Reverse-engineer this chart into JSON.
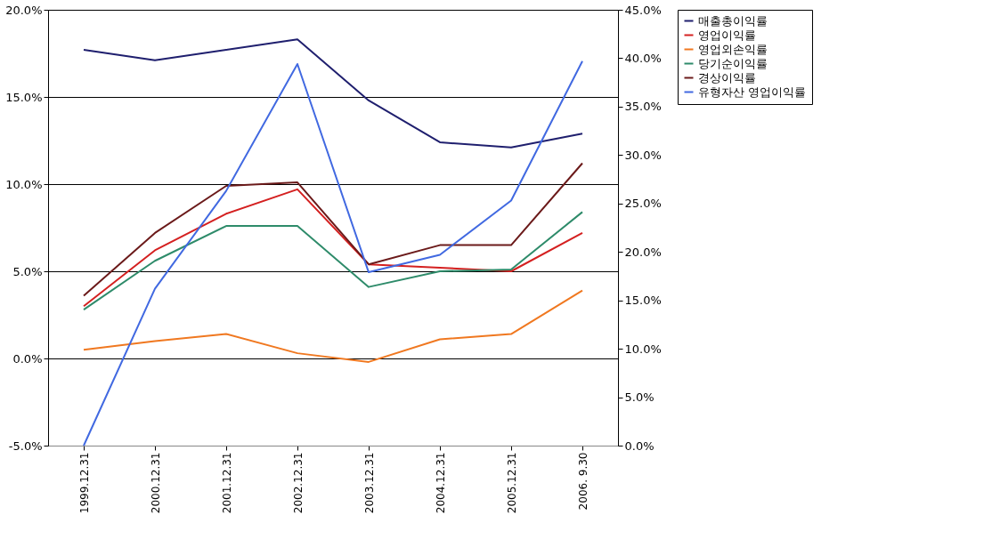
{
  "chart_data": {
    "type": "line",
    "categories": [
      "1999.12.31",
      "2000.12.31",
      "2001.12.31",
      "2002.12.31",
      "2003.12.31",
      "2004.12.31",
      "2005.12.31",
      "2006. 9.30"
    ],
    "series": [
      {
        "name": "매출총이익률",
        "color": "#1f1f6e",
        "values": [
          17.7,
          17.1,
          17.7,
          18.3,
          14.8,
          12.4,
          12.1,
          12.9
        ]
      },
      {
        "name": "영업이익률",
        "color": "#d42020",
        "values": [
          3.0,
          6.2,
          8.3,
          9.7,
          5.4,
          5.2,
          5.0,
          7.2
        ]
      },
      {
        "name": "영업외손익률",
        "color": "#f07820",
        "values": [
          0.5,
          1.0,
          1.4,
          0.3,
          -0.2,
          1.1,
          1.4,
          3.9
        ]
      },
      {
        "name": "당기순이익률",
        "color": "#2e8b6a",
        "values": [
          2.8,
          5.6,
          7.6,
          7.6,
          4.1,
          5.0,
          5.1,
          8.4
        ]
      },
      {
        "name": "경상이익률",
        "color": "#6b1a1a",
        "values": [
          3.6,
          7.2,
          9.9,
          10.1,
          5.4,
          6.5,
          6.5,
          11.2
        ]
      },
      {
        "name": "유형자산 영업이익률",
        "color": "#4169e1",
        "axis": "y2",
        "values": [
          0.0,
          16.2,
          26.3,
          39.4,
          17.9,
          19.7,
          25.3,
          39.7
        ]
      }
    ],
    "ylim": [
      -5,
      20
    ],
    "yticks": [
      {
        "value": -5,
        "label": "-5.0%"
      },
      {
        "value": 0,
        "label": "0.0%"
      },
      {
        "value": 5,
        "label": "5.0%"
      },
      {
        "value": 10,
        "label": "10.0%"
      },
      {
        "value": 15,
        "label": "15.0%"
      },
      {
        "value": 20,
        "label": "20.0%"
      }
    ],
    "y2lim": [
      0,
      45
    ],
    "y2ticks": [
      {
        "value": 0,
        "label": "0.0%"
      },
      {
        "value": 5,
        "label": "5.0%"
      },
      {
        "value": 10,
        "label": "10.0%"
      },
      {
        "value": 15,
        "label": "15.0%"
      },
      {
        "value": 20,
        "label": "20.0%"
      },
      {
        "value": 25,
        "label": "25.0%"
      },
      {
        "value": 30,
        "label": "30.0%"
      },
      {
        "value": 35,
        "label": "35.0%"
      },
      {
        "value": 40,
        "label": "40.0%"
      },
      {
        "value": 45,
        "label": "45.0%"
      }
    ],
    "grid": "y",
    "legend": "right",
    "marker": "none",
    "line_style": "solid"
  }
}
